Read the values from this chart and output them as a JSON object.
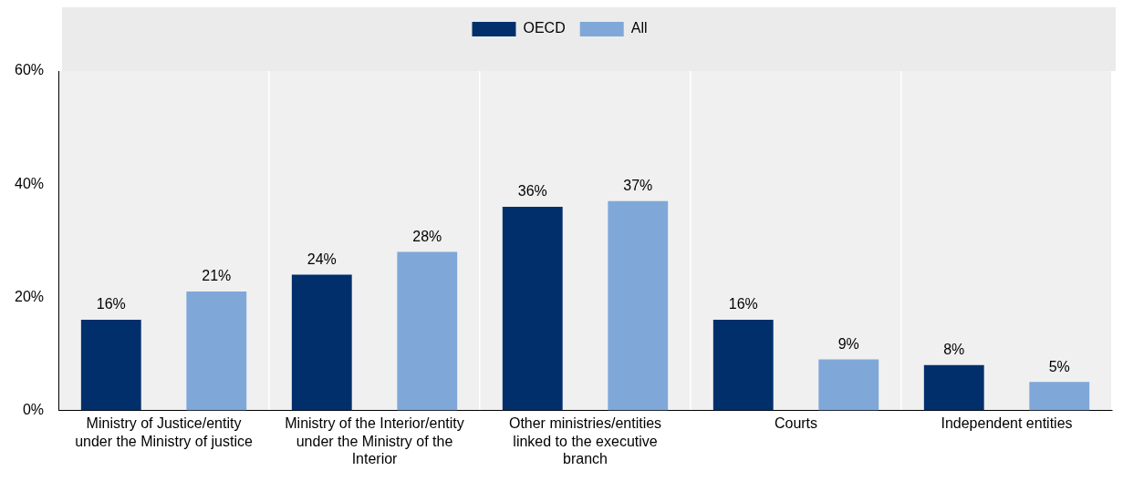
{
  "chart_data": {
    "type": "bar",
    "categories": [
      "Ministry of Justice/entity under the Ministry of justice",
      "Ministry of the Interior/entity under the Ministry of the Interior",
      "Other ministries/entities linked to the executive branch",
      "Courts",
      "Independent entities"
    ],
    "series": [
      {
        "name": "OECD",
        "color": "#002f6c",
        "values": [
          16,
          24,
          36,
          16,
          8
        ],
        "value_labels": [
          "16%",
          "24%",
          "36%",
          "16%",
          "8%"
        ]
      },
      {
        "name": "All",
        "color": "#7fa8d9",
        "values": [
          21,
          28,
          37,
          9,
          5
        ],
        "value_labels": [
          "21%",
          "28%",
          "37%",
          "9%",
          "5%"
        ]
      }
    ],
    "ylim": [
      0,
      60
    ],
    "yticks": [
      {
        "value": 0,
        "label": "0%"
      },
      {
        "value": 20,
        "label": "20%"
      },
      {
        "value": 40,
        "label": "40%"
      },
      {
        "value": 60,
        "label": "60%"
      }
    ],
    "grid": "x",
    "legend": "top"
  }
}
